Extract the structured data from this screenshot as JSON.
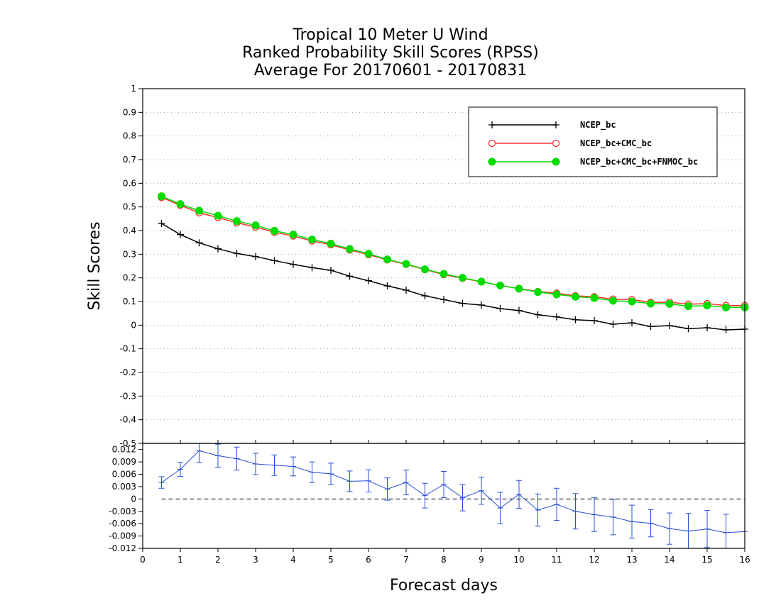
{
  "chart_data": [
    {
      "type": "line",
      "title": [
        "Tropical 10 Meter U Wind",
        "Ranked Probability Skill Scores (RPSS)",
        "Average For 20170601 - 20170831"
      ],
      "ylabel": "Skill Scores",
      "ylim": [
        -0.5,
        1
      ],
      "yticks": [
        "1",
        "0.9",
        "0.8",
        "0.7",
        "0.6",
        "0.5",
        "0.4",
        "0.3",
        "0.2",
        "0.1",
        "0",
        "-0.1",
        "-0.2",
        "-0.3",
        "-0.4",
        "-0.5"
      ],
      "xlim": [
        0,
        16
      ],
      "grid": true,
      "legend_position": "top-right",
      "x": [
        0.5,
        1,
        1.5,
        2,
        2.5,
        3,
        3.5,
        4,
        4.5,
        5,
        5.5,
        6,
        6.5,
        7,
        7.5,
        8,
        8.5,
        9,
        9.5,
        10,
        10.5,
        11,
        11.5,
        12,
        12.5,
        13,
        13.5,
        14,
        14.5,
        15,
        15.5,
        16
      ],
      "series": [
        {
          "name": "NCEP_bc",
          "color": "#000000",
          "marker": "plus",
          "values": [
            0.43,
            0.383,
            0.348,
            0.323,
            0.303,
            0.29,
            0.273,
            0.257,
            0.243,
            0.232,
            0.207,
            0.188,
            0.166,
            0.148,
            0.124,
            0.108,
            0.092,
            0.085,
            0.07,
            0.062,
            0.044,
            0.035,
            0.023,
            0.019,
            0.004,
            0.01,
            -0.006,
            -0.002,
            -0.015,
            -0.011,
            -0.02,
            -0.017
          ]
        },
        {
          "name": "NCEP_bc+CMC_bc",
          "color": "#ff3030",
          "marker": "open-circle",
          "values": [
            0.54,
            0.507,
            0.475,
            0.455,
            0.433,
            0.415,
            0.393,
            0.377,
            0.356,
            0.34,
            0.318,
            0.298,
            0.276,
            0.257,
            0.235,
            0.214,
            0.198,
            0.183,
            0.168,
            0.155,
            0.142,
            0.135,
            0.124,
            0.12,
            0.11,
            0.108,
            0.096,
            0.097,
            0.089,
            0.091,
            0.083,
            0.083
          ]
        },
        {
          "name": "NCEP_bc+CMC_bc+FNMOC_bc",
          "color": "#00dc00",
          "marker": "filled-circle",
          "values": [
            0.545,
            0.512,
            0.484,
            0.463,
            0.44,
            0.422,
            0.399,
            0.383,
            0.362,
            0.345,
            0.322,
            0.302,
            0.278,
            0.259,
            0.236,
            0.217,
            0.2,
            0.184,
            0.168,
            0.154,
            0.14,
            0.13,
            0.12,
            0.115,
            0.103,
            0.1,
            0.091,
            0.09,
            0.08,
            0.083,
            0.075,
            0.075
          ]
        }
      ]
    },
    {
      "type": "line",
      "xlabel": "Forecast days",
      "xlim": [
        0,
        16
      ],
      "xticks": [
        "0",
        "1",
        "2",
        "3",
        "4",
        "5",
        "6",
        "7",
        "8",
        "9",
        "10",
        "11",
        "12",
        "13",
        "14",
        "15",
        "16"
      ],
      "ylim": [
        -0.012,
        0.0135
      ],
      "yticks": [
        "0.012",
        "0.009",
        "0.006",
        "0.003",
        "0",
        "-0.003",
        "-0.006",
        "-0.009",
        "-0.012"
      ],
      "x": [
        0.5,
        1,
        1.5,
        2,
        2.5,
        3,
        3.5,
        4,
        4.5,
        5,
        5.5,
        6,
        6.5,
        7,
        7.5,
        8,
        8.5,
        9,
        9.5,
        10,
        10.5,
        11,
        11.5,
        12,
        12.5,
        13,
        13.5,
        14,
        14.5,
        15,
        15.5,
        16
      ],
      "series": [
        {
          "color": "#2850d8",
          "values": [
            0.004,
            0.0072,
            0.0117,
            0.0105,
            0.0098,
            0.0085,
            0.0082,
            0.0079,
            0.0065,
            0.0061,
            0.0043,
            0.0044,
            0.0024,
            0.004,
            0.0008,
            0.0035,
            0.0003,
            0.002,
            -0.0022,
            0.0011,
            -0.0027,
            -0.0013,
            -0.003,
            -0.0038,
            -0.0044,
            -0.0055,
            -0.0059,
            -0.0072,
            -0.0078,
            -0.0073,
            -0.0082,
            -0.0079
          ],
          "error": [
            0.0014,
            0.0017,
            0.0028,
            0.0028,
            0.0028,
            0.0026,
            0.0025,
            0.0023,
            0.0025,
            0.0026,
            0.0025,
            0.0027,
            0.0027,
            0.003,
            0.003,
            0.0032,
            0.0032,
            0.0033,
            0.0038,
            0.0034,
            0.0039,
            0.0039,
            0.0043,
            0.0041,
            0.0043,
            0.004,
            0.0033,
            0.0038,
            0.0043,
            0.0045,
            0.0045,
            0
          ]
        }
      ]
    }
  ]
}
